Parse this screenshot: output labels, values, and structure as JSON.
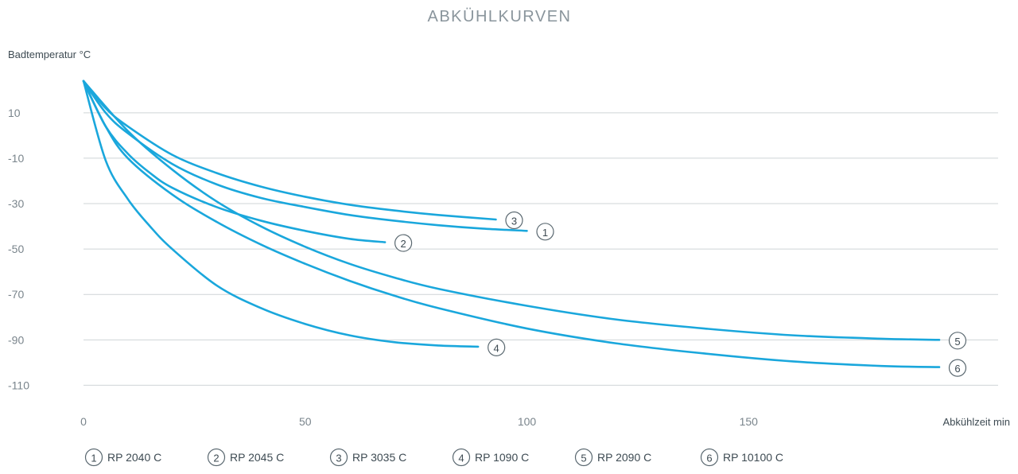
{
  "chart_data": {
    "type": "line",
    "title": "ABKÜHLKURVEN",
    "ylabel": "Badtemperatur °C",
    "xlabel": "Abkühlzeit min",
    "xlim": [
      0,
      200
    ],
    "ylim": [
      -113,
      25
    ],
    "xticks": [
      0,
      50,
      100,
      150
    ],
    "yticks": [
      10,
      -10,
      -30,
      -50,
      -70,
      -90,
      -110
    ],
    "grid": "horizontal",
    "legend_position": "bottom",
    "series": [
      {
        "name": "RP 2040 C",
        "marker": "1",
        "x": [
          0,
          5,
          10,
          20,
          30,
          40,
          50,
          60,
          70,
          80,
          90,
          100
        ],
        "y": [
          24,
          10,
          1,
          -12.5,
          -21.5,
          -27.5,
          -31.5,
          -35,
          -37.5,
          -39.5,
          -41,
          -42
        ]
      },
      {
        "name": "RP 2045 C",
        "marker": "2",
        "x": [
          0,
          5,
          10,
          15,
          20,
          30,
          40,
          50,
          60,
          68
        ],
        "y": [
          24,
          4,
          -8,
          -16.5,
          -23,
          -31.5,
          -37.5,
          -42,
          -45.5,
          -47
        ]
      },
      {
        "name": "RP 3035 C",
        "marker": "3",
        "x": [
          0,
          5,
          10,
          20,
          30,
          40,
          50,
          60,
          70,
          80,
          93
        ],
        "y": [
          24,
          12,
          4,
          -8.5,
          -16.5,
          -22.5,
          -27,
          -30.5,
          -33,
          -35,
          -37
        ]
      },
      {
        "name": "RP 1090 C",
        "marker": "4",
        "x": [
          0,
          5,
          10,
          15,
          20,
          30,
          40,
          50,
          60,
          70,
          80,
          89
        ],
        "y": [
          24,
          -11,
          -28,
          -40,
          -50,
          -66,
          -76,
          -83,
          -88,
          -91,
          -92.5,
          -93
        ]
      },
      {
        "name": "RP 2090 C",
        "marker": "5",
        "x": [
          0,
          10,
          20,
          30,
          40,
          50,
          60,
          70,
          80,
          100,
          120,
          140,
          160,
          180,
          193
        ],
        "y": [
          24,
          2,
          -15,
          -29,
          -40,
          -49,
          -56.5,
          -62.5,
          -67.5,
          -75,
          -81,
          -85,
          -88,
          -89.5,
          -90
        ]
      },
      {
        "name": "RP 10100 C",
        "marker": "6",
        "x": [
          0,
          5,
          10,
          20,
          30,
          40,
          50,
          60,
          70,
          80,
          100,
          120,
          140,
          160,
          180,
          193
        ],
        "y": [
          24,
          4,
          -10,
          -26,
          -38,
          -48,
          -56.5,
          -64,
          -70.5,
          -76,
          -85,
          -91.5,
          -96,
          -99.5,
          -101.5,
          -102
        ]
      }
    ]
  }
}
